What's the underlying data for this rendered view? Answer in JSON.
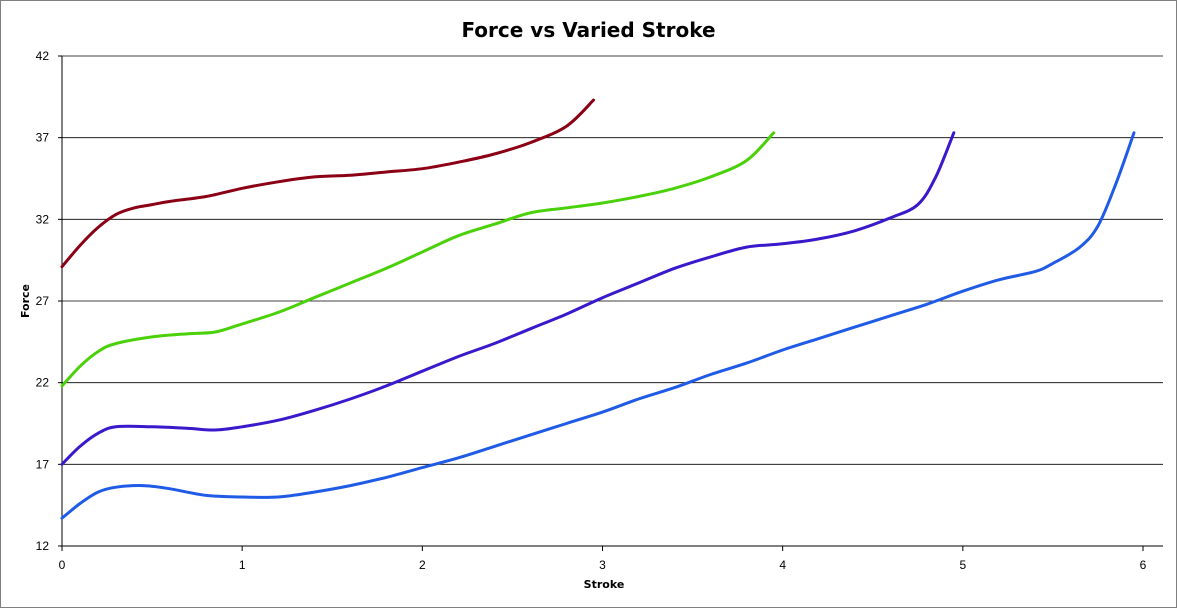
{
  "chart_data": {
    "type": "line",
    "title": "Force vs Varied Stroke",
    "xlabel": "Stroke",
    "ylabel": "Force",
    "xlim": [
      0,
      6
    ],
    "ylim": [
      12,
      42
    ],
    "x_ticks": [
      "0",
      "1",
      "2",
      "3",
      "4",
      "5",
      "6"
    ],
    "y_ticks": [
      "12",
      "17",
      "22",
      "27",
      "32",
      "37",
      "42"
    ],
    "grid": "horizontal",
    "legend": "none",
    "series": [
      {
        "color": "#8B0015",
        "points": [
          [
            0,
            29.1
          ],
          [
            0.1,
            30.4
          ],
          [
            0.2,
            31.5
          ],
          [
            0.3,
            32.3
          ],
          [
            0.4,
            32.7
          ],
          [
            0.5,
            32.9
          ],
          [
            0.6,
            33.1
          ],
          [
            0.8,
            33.4
          ],
          [
            1.0,
            33.9
          ],
          [
            1.2,
            34.3
          ],
          [
            1.4,
            34.6
          ],
          [
            1.6,
            34.7
          ],
          [
            1.8,
            34.9
          ],
          [
            2.0,
            35.1
          ],
          [
            2.2,
            35.5
          ],
          [
            2.4,
            36.0
          ],
          [
            2.6,
            36.7
          ],
          [
            2.8,
            37.7
          ],
          [
            2.95,
            39.3
          ]
        ]
      },
      {
        "color": "#4BD10A",
        "points": [
          [
            0,
            21.8
          ],
          [
            0.1,
            23.0
          ],
          [
            0.2,
            23.9
          ],
          [
            0.3,
            24.4
          ],
          [
            0.5,
            24.8
          ],
          [
            0.7,
            25.0
          ],
          [
            0.85,
            25.1
          ],
          [
            1.0,
            25.6
          ],
          [
            1.2,
            26.3
          ],
          [
            1.4,
            27.2
          ],
          [
            1.6,
            28.1
          ],
          [
            1.8,
            29.0
          ],
          [
            2.0,
            30.0
          ],
          [
            2.2,
            31.0
          ],
          [
            2.4,
            31.7
          ],
          [
            2.6,
            32.4
          ],
          [
            2.8,
            32.7
          ],
          [
            3.0,
            33.0
          ],
          [
            3.2,
            33.4
          ],
          [
            3.4,
            33.9
          ],
          [
            3.6,
            34.6
          ],
          [
            3.8,
            35.6
          ],
          [
            3.95,
            37.3
          ]
        ]
      },
      {
        "color": "#3A18CC",
        "points": [
          [
            0,
            17.0
          ],
          [
            0.1,
            18.1
          ],
          [
            0.2,
            18.9
          ],
          [
            0.3,
            19.3
          ],
          [
            0.5,
            19.3
          ],
          [
            0.7,
            19.2
          ],
          [
            0.85,
            19.1
          ],
          [
            1.0,
            19.3
          ],
          [
            1.2,
            19.7
          ],
          [
            1.4,
            20.3
          ],
          [
            1.6,
            21.0
          ],
          [
            1.8,
            21.8
          ],
          [
            2.0,
            22.7
          ],
          [
            2.2,
            23.6
          ],
          [
            2.4,
            24.4
          ],
          [
            2.6,
            25.3
          ],
          [
            2.8,
            26.2
          ],
          [
            3.0,
            27.2
          ],
          [
            3.2,
            28.1
          ],
          [
            3.4,
            29.0
          ],
          [
            3.6,
            29.7
          ],
          [
            3.8,
            30.3
          ],
          [
            4.0,
            30.5
          ],
          [
            4.2,
            30.8
          ],
          [
            4.4,
            31.3
          ],
          [
            4.6,
            32.1
          ],
          [
            4.75,
            32.9
          ],
          [
            4.85,
            34.6
          ],
          [
            4.95,
            37.3
          ]
        ]
      },
      {
        "color": "#1F5BE6",
        "points": [
          [
            0,
            13.7
          ],
          [
            0.1,
            14.6
          ],
          [
            0.2,
            15.3
          ],
          [
            0.3,
            15.6
          ],
          [
            0.45,
            15.7
          ],
          [
            0.6,
            15.5
          ],
          [
            0.8,
            15.1
          ],
          [
            1.0,
            15.0
          ],
          [
            1.2,
            15.0
          ],
          [
            1.4,
            15.3
          ],
          [
            1.6,
            15.7
          ],
          [
            1.8,
            16.2
          ],
          [
            2.0,
            16.8
          ],
          [
            2.2,
            17.4
          ],
          [
            2.4,
            18.1
          ],
          [
            2.6,
            18.8
          ],
          [
            2.8,
            19.5
          ],
          [
            3.0,
            20.2
          ],
          [
            3.2,
            21.0
          ],
          [
            3.4,
            21.7
          ],
          [
            3.6,
            22.5
          ],
          [
            3.8,
            23.2
          ],
          [
            4.0,
            24.0
          ],
          [
            4.2,
            24.7
          ],
          [
            4.4,
            25.4
          ],
          [
            4.6,
            26.1
          ],
          [
            4.8,
            26.8
          ],
          [
            5.0,
            27.6
          ],
          [
            5.2,
            28.3
          ],
          [
            5.4,
            28.8
          ],
          [
            5.5,
            29.3
          ],
          [
            5.65,
            30.3
          ],
          [
            5.75,
            31.6
          ],
          [
            5.85,
            34.2
          ],
          [
            5.95,
            37.3
          ]
        ]
      }
    ]
  }
}
